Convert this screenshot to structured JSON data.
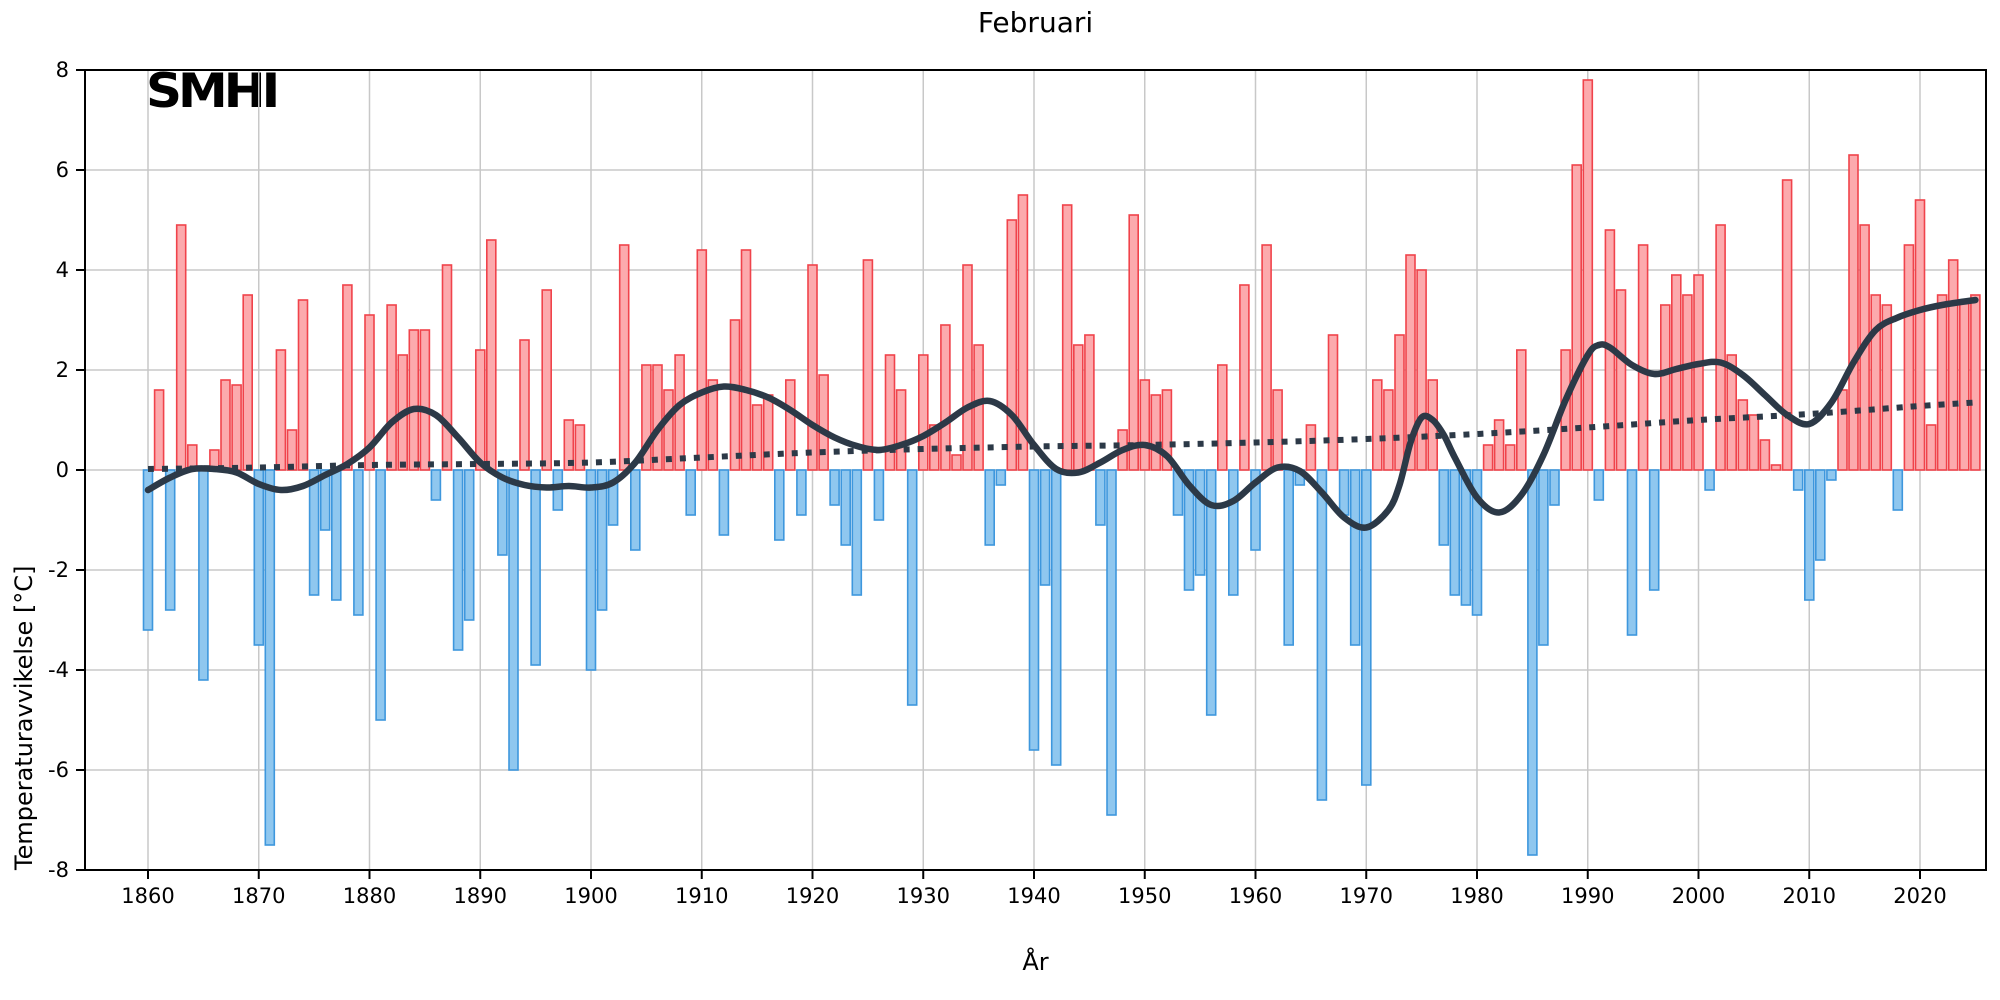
{
  "figure": {
    "title": "Februari",
    "logo_text": "SMHI",
    "x_axis_label": "År",
    "y_axis_label": "Temperaturavvikelse [°C]"
  },
  "chart_data": {
    "type": "bar",
    "title": "Februari",
    "xlabel": "År",
    "ylabel": "Temperaturavvikelse [°C]",
    "ylim": [
      -8,
      8
    ],
    "xlim": [
      1854,
      2026
    ],
    "grid": true,
    "x_ticks": [
      1860,
      1870,
      1880,
      1890,
      1900,
      1910,
      1920,
      1930,
      1940,
      1950,
      1960,
      1970,
      1980,
      1990,
      2000,
      2010,
      2020
    ],
    "y_ticks": [
      -8,
      -6,
      -4,
      -2,
      0,
      2,
      4,
      6,
      8
    ],
    "start_year": 1860,
    "categories_note": "one bar per year 1860-2025, temperature anomaly in °C",
    "values": [
      -3.2,
      1.6,
      -2.8,
      4.9,
      0.5,
      -4.2,
      0.4,
      1.8,
      1.7,
      3.5,
      -3.5,
      -7.5,
      2.4,
      0.8,
      3.4,
      -2.5,
      -1.2,
      -2.6,
      3.7,
      -2.9,
      3.1,
      -5.0,
      3.3,
      2.3,
      2.8,
      2.8,
      -0.6,
      4.1,
      -3.6,
      -3.0,
      2.4,
      4.6,
      -1.7,
      -6.0,
      2.6,
      -3.9,
      3.6,
      -0.8,
      1.0,
      0.9,
      -4.0,
      -2.8,
      -1.1,
      4.5,
      -1.6,
      2.1,
      2.1,
      1.6,
      2.3,
      -0.9,
      4.4,
      1.8,
      -1.3,
      3.0,
      4.4,
      1.3,
      1.5,
      -1.4,
      1.8,
      -0.9,
      4.1,
      1.9,
      -0.7,
      -1.5,
      -2.5,
      4.2,
      -1.0,
      2.3,
      1.6,
      -4.7,
      2.3,
      0.9,
      2.9,
      0.3,
      4.1,
      2.5,
      -1.5,
      -0.3,
      5.0,
      5.5,
      -5.6,
      -2.3,
      -5.9,
      5.3,
      2.5,
      2.7,
      -1.1,
      -6.9,
      0.8,
      5.1,
      1.8,
      1.5,
      1.6,
      -0.9,
      -2.4,
      -2.1,
      -4.9,
      2.1,
      -2.5,
      3.7,
      -1.6,
      4.5,
      1.6,
      -3.5,
      -0.3,
      0.9,
      -6.6,
      2.7,
      -0.9,
      -3.5,
      -6.3,
      1.8,
      1.6,
      2.7,
      4.3,
      4.0,
      1.8,
      -1.5,
      -2.5,
      -2.7,
      -2.9,
      0.5,
      1.0,
      0.5,
      2.4,
      -7.7,
      -3.5,
      -0.7,
      2.4,
      6.1,
      7.8,
      -0.6,
      4.8,
      3.6,
      -3.3,
      4.5,
      -2.4,
      3.3,
      3.9,
      3.5,
      3.9,
      -0.4,
      4.9,
      2.3,
      1.4,
      1.1,
      0.6,
      0.1,
      5.8,
      -0.4,
      -2.6,
      -1.8,
      -0.2,
      1.6,
      6.3,
      4.9,
      3.5,
      3.3,
      -0.8,
      4.5,
      5.4,
      0.9,
      3.5,
      4.2,
      3.4,
      3.5
    ],
    "series": [
      {
        "name": "smoothed-curve",
        "type": "line",
        "style": "solid",
        "points": [
          [
            1860,
            -0.4
          ],
          [
            1862,
            -0.15
          ],
          [
            1864,
            0.02
          ],
          [
            1866,
            0.02
          ],
          [
            1868,
            -0.05
          ],
          [
            1870,
            -0.28
          ],
          [
            1872,
            -0.4
          ],
          [
            1874,
            -0.32
          ],
          [
            1876,
            -0.1
          ],
          [
            1878,
            0.12
          ],
          [
            1880,
            0.45
          ],
          [
            1882,
            0.95
          ],
          [
            1884,
            1.22
          ],
          [
            1886,
            1.1
          ],
          [
            1888,
            0.65
          ],
          [
            1890,
            0.15
          ],
          [
            1892,
            -0.15
          ],
          [
            1894,
            -0.3
          ],
          [
            1896,
            -0.35
          ],
          [
            1898,
            -0.32
          ],
          [
            1900,
            -0.35
          ],
          [
            1902,
            -0.25
          ],
          [
            1904,
            0.15
          ],
          [
            1906,
            0.8
          ],
          [
            1908,
            1.3
          ],
          [
            1910,
            1.55
          ],
          [
            1912,
            1.67
          ],
          [
            1914,
            1.6
          ],
          [
            1916,
            1.45
          ],
          [
            1918,
            1.2
          ],
          [
            1920,
            0.9
          ],
          [
            1922,
            0.65
          ],
          [
            1924,
            0.48
          ],
          [
            1926,
            0.4
          ],
          [
            1928,
            0.5
          ],
          [
            1930,
            0.68
          ],
          [
            1932,
            0.95
          ],
          [
            1934,
            1.25
          ],
          [
            1936,
            1.38
          ],
          [
            1938,
            1.1
          ],
          [
            1940,
            0.5
          ],
          [
            1942,
            0.02
          ],
          [
            1944,
            -0.05
          ],
          [
            1946,
            0.15
          ],
          [
            1948,
            0.4
          ],
          [
            1950,
            0.5
          ],
          [
            1952,
            0.28
          ],
          [
            1954,
            -0.3
          ],
          [
            1956,
            -0.7
          ],
          [
            1958,
            -0.62
          ],
          [
            1960,
            -0.25
          ],
          [
            1962,
            0.05
          ],
          [
            1964,
            -0.02
          ],
          [
            1966,
            -0.45
          ],
          [
            1968,
            -0.95
          ],
          [
            1970,
            -1.15
          ],
          [
            1972,
            -0.8
          ],
          [
            1973,
            -0.3
          ],
          [
            1974,
            0.55
          ],
          [
            1975,
            1.05
          ],
          [
            1976,
            1.0
          ],
          [
            1977,
            0.7
          ],
          [
            1978,
            0.25
          ],
          [
            1980,
            -0.55
          ],
          [
            1982,
            -0.85
          ],
          [
            1984,
            -0.5
          ],
          [
            1986,
            0.3
          ],
          [
            1988,
            1.4
          ],
          [
            1990,
            2.3
          ],
          [
            1991,
            2.5
          ],
          [
            1992,
            2.45
          ],
          [
            1994,
            2.1
          ],
          [
            1996,
            1.92
          ],
          [
            1998,
            2.02
          ],
          [
            2000,
            2.12
          ],
          [
            2002,
            2.15
          ],
          [
            2004,
            1.9
          ],
          [
            2006,
            1.5
          ],
          [
            2008,
            1.1
          ],
          [
            2010,
            0.92
          ],
          [
            2012,
            1.35
          ],
          [
            2014,
            2.15
          ],
          [
            2016,
            2.8
          ],
          [
            2018,
            3.05
          ],
          [
            2020,
            3.2
          ],
          [
            2022,
            3.3
          ],
          [
            2025,
            3.4
          ]
        ]
      },
      {
        "name": "trend-line",
        "type": "line",
        "style": "dotted",
        "points": [
          [
            1860,
            0.02
          ],
          [
            1870,
            0.05
          ],
          [
            1880,
            0.1
          ],
          [
            1890,
            0.12
          ],
          [
            1900,
            0.15
          ],
          [
            1910,
            0.25
          ],
          [
            1920,
            0.35
          ],
          [
            1930,
            0.42
          ],
          [
            1940,
            0.47
          ],
          [
            1950,
            0.5
          ],
          [
            1960,
            0.55
          ],
          [
            1970,
            0.62
          ],
          [
            1980,
            0.72
          ],
          [
            1990,
            0.85
          ],
          [
            2000,
            1.0
          ],
          [
            2010,
            1.12
          ],
          [
            2020,
            1.28
          ],
          [
            2025,
            1.35
          ]
        ]
      }
    ],
    "colors": {
      "positive_fill": "#fcaaad",
      "positive_edge": "#f0434b",
      "negative_fill": "#8fc7ef",
      "negative_edge": "#3e97dd",
      "curve": "#2c3947",
      "grid": "#c8c8c8",
      "spine": "#000000"
    }
  }
}
